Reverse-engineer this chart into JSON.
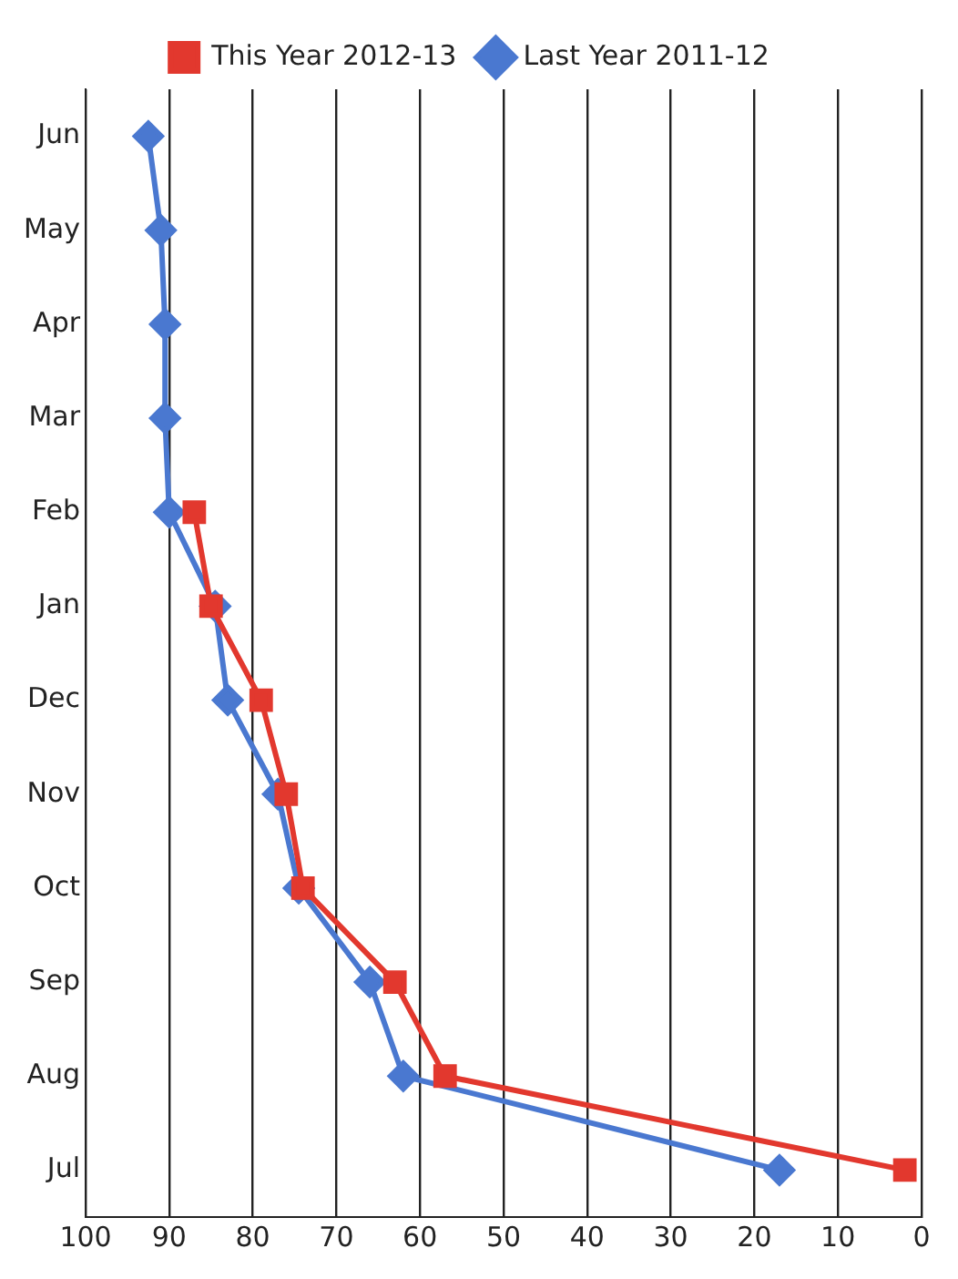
{
  "chart_data": {
    "type": "line",
    "orientation": "horizontal",
    "categories": [
      "Jun",
      "May",
      "Apr",
      "Mar",
      "Feb",
      "Jan",
      "Dec",
      "Nov",
      "Oct",
      "Sep",
      "Aug",
      "Jul"
    ],
    "series": [
      {
        "name": "Last Year 2011-12",
        "color": "#4a78d0",
        "marker": "diamond",
        "values": [
          92.5,
          91,
          90.5,
          90.5,
          90,
          84.5,
          83,
          77,
          74.5,
          66,
          62,
          17
        ]
      },
      {
        "name": "This Year 2012-13",
        "color": "#e2382e",
        "marker": "square",
        "values": [
          null,
          null,
          null,
          null,
          87,
          85,
          79,
          76,
          74,
          63,
          57,
          2
        ]
      }
    ],
    "xlim": [
      100,
      0
    ],
    "xticks": [
      100,
      90,
      80,
      70,
      60,
      50,
      40,
      30,
      20,
      10,
      0
    ],
    "grid": "x",
    "legend": "top",
    "line_style": "solid"
  }
}
